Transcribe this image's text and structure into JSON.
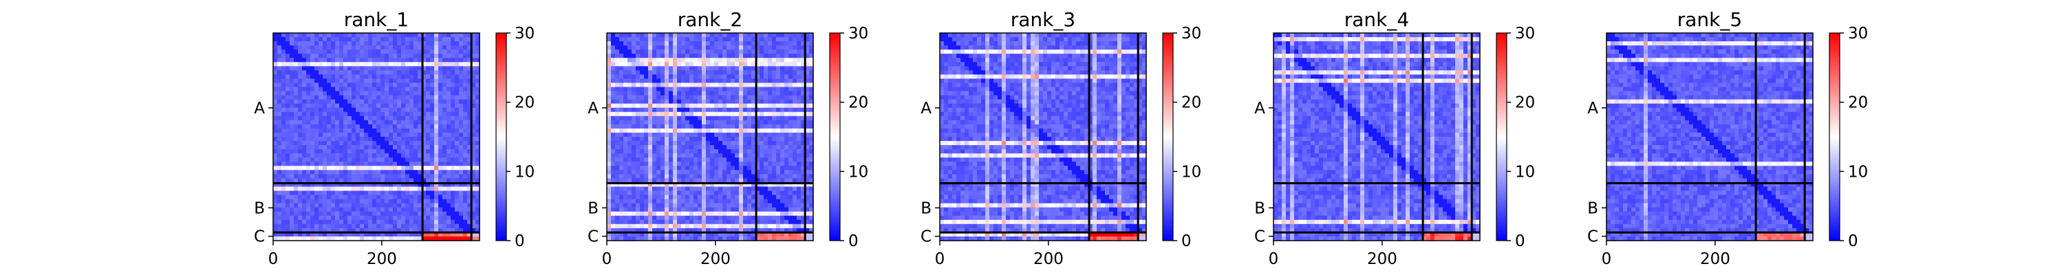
{
  "chart_data": [
    {
      "type": "heatmap",
      "title": "rank_1",
      "xticks": [
        0,
        200
      ],
      "yticks": [
        "A",
        "B",
        "C"
      ],
      "colorbar": {
        "min": 0,
        "max": 30,
        "ticks": [
          0,
          10,
          20,
          30
        ],
        "colormap": "bwr"
      },
      "residues": 380,
      "chain_boundaries": [
        275,
        365
      ],
      "chain_centers": {
        "A": 137,
        "B": 320,
        "C": 372
      }
    },
    {
      "type": "heatmap",
      "title": "rank_2",
      "xticks": [
        0,
        200
      ],
      "yticks": [
        "A",
        "B",
        "C"
      ],
      "colorbar": {
        "min": 0,
        "max": 30,
        "ticks": [
          0,
          10,
          20,
          30
        ],
        "colormap": "bwr"
      },
      "residues": 380,
      "chain_boundaries": [
        275,
        365
      ],
      "chain_centers": {
        "A": 137,
        "B": 320,
        "C": 372
      }
    },
    {
      "type": "heatmap",
      "title": "rank_3",
      "xticks": [
        0,
        200
      ],
      "yticks": [
        "A",
        "B",
        "C"
      ],
      "colorbar": {
        "min": 0,
        "max": 30,
        "ticks": [
          0,
          10,
          20,
          30
        ],
        "colormap": "bwr"
      },
      "residues": 380,
      "chain_boundaries": [
        275,
        365
      ],
      "chain_centers": {
        "A": 137,
        "B": 320,
        "C": 372
      }
    },
    {
      "type": "heatmap",
      "title": "rank_4",
      "xticks": [
        0,
        200
      ],
      "yticks": [
        "A",
        "B",
        "C"
      ],
      "colorbar": {
        "min": 0,
        "max": 30,
        "ticks": [
          0,
          10,
          20,
          30
        ],
        "colormap": "bwr"
      },
      "residues": 380,
      "chain_boundaries": [
        275,
        365
      ],
      "chain_centers": {
        "A": 137,
        "B": 320,
        "C": 372
      }
    },
    {
      "type": "heatmap",
      "title": "rank_5",
      "xticks": [
        0,
        200
      ],
      "yticks": [
        "A",
        "B",
        "C"
      ],
      "colorbar": {
        "min": 0,
        "max": 30,
        "ticks": [
          0,
          10,
          20,
          30
        ],
        "colormap": "bwr"
      },
      "residues": 380,
      "chain_boundaries": [
        275,
        365
      ],
      "chain_centers": {
        "A": 137,
        "B": 320,
        "C": 372
      }
    }
  ]
}
